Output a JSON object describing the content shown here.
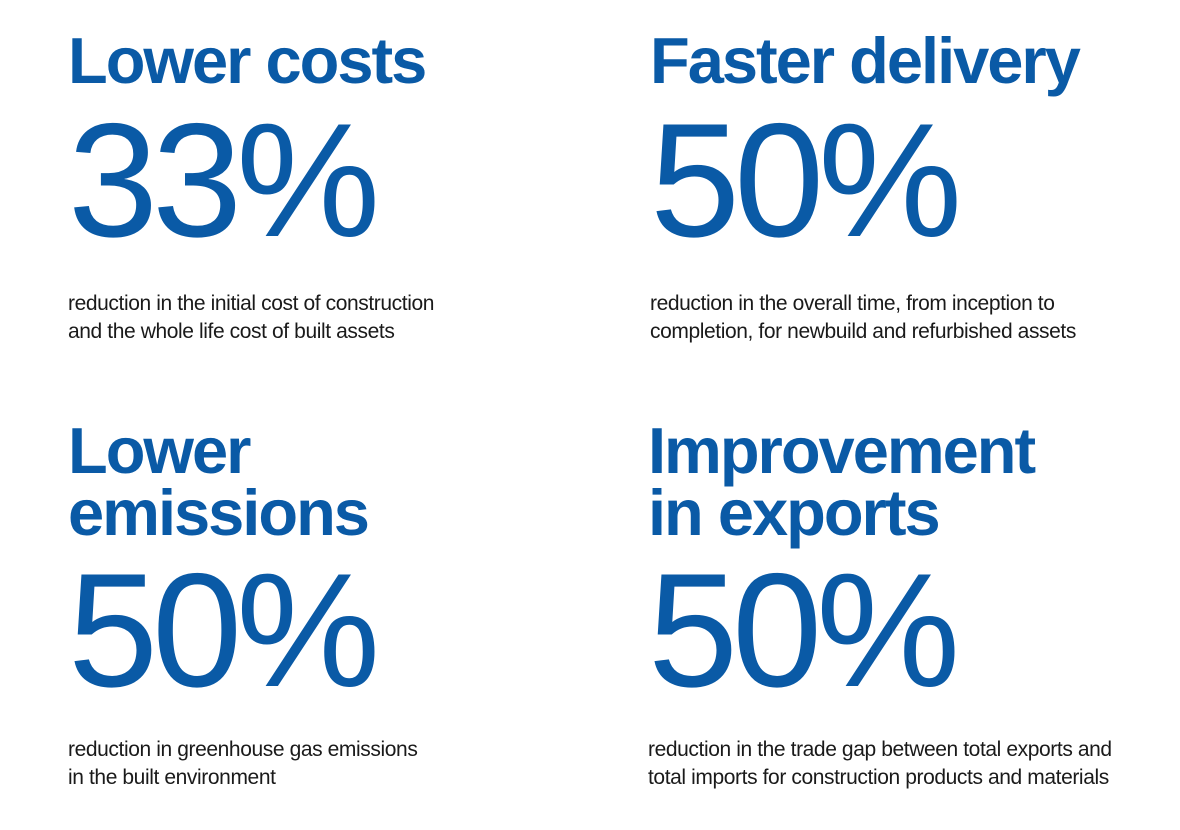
{
  "panels": [
    {
      "headline": "Lower costs",
      "value": "33%",
      "description_lines": [
        "reduction in the initial cost of construction",
        "and the whole life cost of built assets"
      ]
    },
    {
      "headline": "Faster delivery",
      "value": "50%",
      "description_lines": [
        "reduction in the overall time, from inception to",
        "completion, for newbuild and refurbished assets"
      ]
    },
    {
      "headline_lines": [
        "Lower",
        "emissions"
      ],
      "value": "50%",
      "description_lines": [
        "reduction in greenhouse gas emissions",
        "in the built environment"
      ]
    },
    {
      "headline_lines": [
        "Improvement",
        "in exports"
      ],
      "value": "50%",
      "description_lines": [
        "reduction in the trade gap between total exports and",
        "total imports for construction products and materials"
      ]
    }
  ],
  "colors": {
    "accent": "#0a5aa6",
    "text": "#1a1a1a",
    "background": "#ffffff"
  }
}
